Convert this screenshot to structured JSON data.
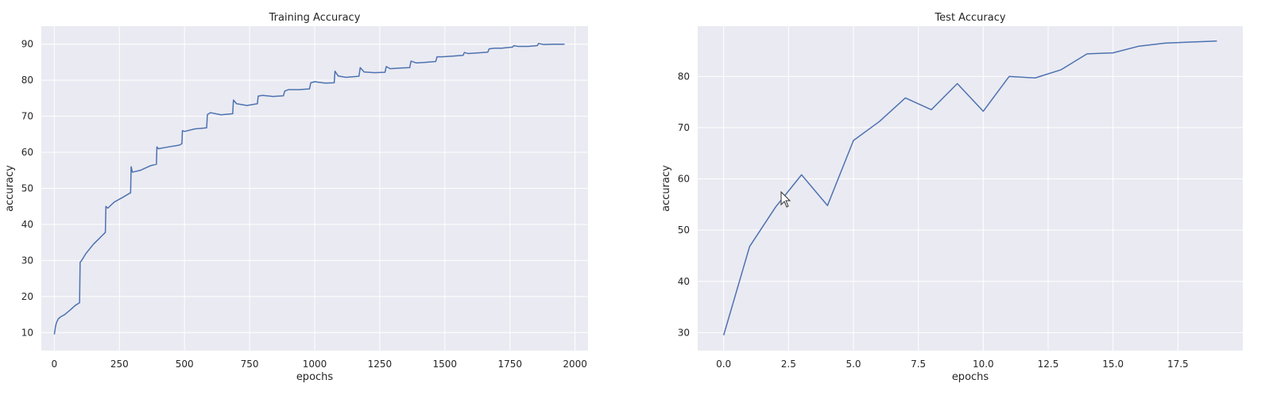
{
  "chart_data": [
    {
      "type": "line",
      "title": "Training Accuracy",
      "xlabel": "epochs",
      "ylabel": "accuracy",
      "xlim": [
        -50,
        2050
      ],
      "ylim": [
        5,
        95
      ],
      "xticks": [
        0,
        250,
        500,
        750,
        1000,
        1250,
        1500,
        1750,
        2000
      ],
      "xtick_labels": [
        "0",
        "250",
        "500",
        "750",
        "1000",
        "1250",
        "1500",
        "1750",
        "2000"
      ],
      "yticks": [
        10,
        20,
        30,
        40,
        50,
        60,
        70,
        80,
        90
      ],
      "ytick_labels": [
        "10",
        "20",
        "30",
        "40",
        "50",
        "60",
        "70",
        "80",
        "90"
      ],
      "grid": true,
      "x": [
        0,
        4,
        8,
        15,
        25,
        40,
        60,
        80,
        97,
        99,
        105,
        120,
        150,
        196,
        198,
        205,
        230,
        260,
        293,
        295,
        300,
        330,
        370,
        392,
        394,
        400,
        430,
        480,
        490,
        492,
        500,
        540,
        585,
        588,
        600,
        640,
        685,
        688,
        700,
        740,
        780,
        783,
        800,
        840,
        880,
        885,
        900,
        940,
        980,
        985,
        1000,
        1040,
        1075,
        1078,
        1090,
        1120,
        1170,
        1175,
        1190,
        1230,
        1270,
        1275,
        1290,
        1330,
        1365,
        1370,
        1390,
        1430,
        1465,
        1470,
        1490,
        1530,
        1570,
        1575,
        1590,
        1630,
        1665,
        1670,
        1690,
        1720,
        1760,
        1765,
        1780,
        1820,
        1855,
        1860,
        1880,
        1920,
        1960
      ],
      "values": [
        9.5,
        11.5,
        12.7,
        13.8,
        14.4,
        15.0,
        16.2,
        17.5,
        18.3,
        29.5,
        30.0,
        31.8,
        34.5,
        37.8,
        45.0,
        44.5,
        46.2,
        47.4,
        48.8,
        56.0,
        54.5,
        55.0,
        56.3,
        56.7,
        61.5,
        61.0,
        61.4,
        62.0,
        62.4,
        66.0,
        65.8,
        66.5,
        66.8,
        70.5,
        71.0,
        70.4,
        70.7,
        74.5,
        73.5,
        73.0,
        73.5,
        75.6,
        75.8,
        75.5,
        75.7,
        77.0,
        77.4,
        77.4,
        77.6,
        79.3,
        79.6,
        79.2,
        79.3,
        82.5,
        81.2,
        80.8,
        81.1,
        83.5,
        82.3,
        82.1,
        82.2,
        83.8,
        83.2,
        83.4,
        83.5,
        85.3,
        84.8,
        85.0,
        85.2,
        86.5,
        86.5,
        86.7,
        86.9,
        87.7,
        87.4,
        87.6,
        87.8,
        88.7,
        88.9,
        88.9,
        89.2,
        89.6,
        89.4,
        89.4,
        89.6,
        90.2,
        89.9,
        90.0,
        90.0
      ]
    },
    {
      "type": "line",
      "title": "Test Accuracy",
      "xlabel": "epochs",
      "ylabel": "accuracy",
      "xlim": [
        -1.0,
        20.0
      ],
      "ylim": [
        26.5,
        89.8
      ],
      "xticks": [
        0.0,
        2.5,
        5.0,
        7.5,
        10.0,
        12.5,
        15.0,
        17.5
      ],
      "xtick_labels": [
        "0.0",
        "2.5",
        "5.0",
        "7.5",
        "10.0",
        "12.5",
        "15.0",
        "17.5"
      ],
      "yticks": [
        30,
        40,
        50,
        60,
        70,
        80
      ],
      "ytick_labels": [
        "30",
        "40",
        "50",
        "60",
        "70",
        "80"
      ],
      "grid": true,
      "x": [
        0,
        1,
        2,
        3,
        4,
        5,
        6,
        7,
        8,
        9,
        10,
        11,
        12,
        13,
        14,
        15,
        16,
        17,
        18,
        19
      ],
      "values": [
        29.5,
        46.8,
        54.5,
        60.8,
        54.8,
        67.5,
        71.2,
        75.8,
        73.5,
        78.6,
        73.2,
        80.0,
        79.7,
        81.3,
        84.4,
        84.6,
        85.9,
        86.5,
        86.7,
        86.9
      ]
    }
  ]
}
